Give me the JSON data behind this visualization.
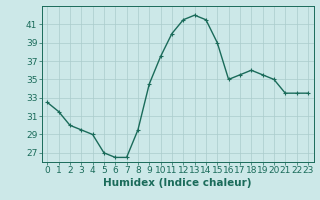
{
  "x": [
    0,
    1,
    2,
    3,
    4,
    5,
    6,
    7,
    8,
    9,
    10,
    11,
    12,
    13,
    14,
    15,
    16,
    17,
    18,
    19,
    20,
    21,
    22,
    23
  ],
  "y": [
    32.5,
    31.5,
    30.0,
    29.5,
    29.0,
    27.0,
    26.5,
    26.5,
    29.5,
    34.5,
    37.5,
    40.0,
    41.5,
    42.0,
    41.5,
    39.0,
    35.0,
    35.5,
    36.0,
    35.5,
    35.0,
    33.5,
    33.5,
    33.5
  ],
  "line_color": "#1a6b5a",
  "marker": "+",
  "marker_size": 3,
  "marker_linewidth": 0.8,
  "bg_color": "#cce8e8",
  "grid_color": "#aacccc",
  "xlabel": "Humidex (Indice chaleur)",
  "ylabel_ticks": [
    27,
    29,
    31,
    33,
    35,
    37,
    39,
    41
  ],
  "xlim": [
    -0.5,
    23.5
  ],
  "ylim": [
    26.0,
    43.0
  ],
  "xtick_labels": [
    "0",
    "1",
    "2",
    "3",
    "4",
    "5",
    "6",
    "7",
    "8",
    "9",
    "10",
    "11",
    "12",
    "13",
    "14",
    "15",
    "16",
    "17",
    "18",
    "19",
    "20",
    "21",
    "22",
    "23"
  ],
  "xlabel_fontsize": 7.5,
  "tick_fontsize": 6.5,
  "line_width": 1.0
}
